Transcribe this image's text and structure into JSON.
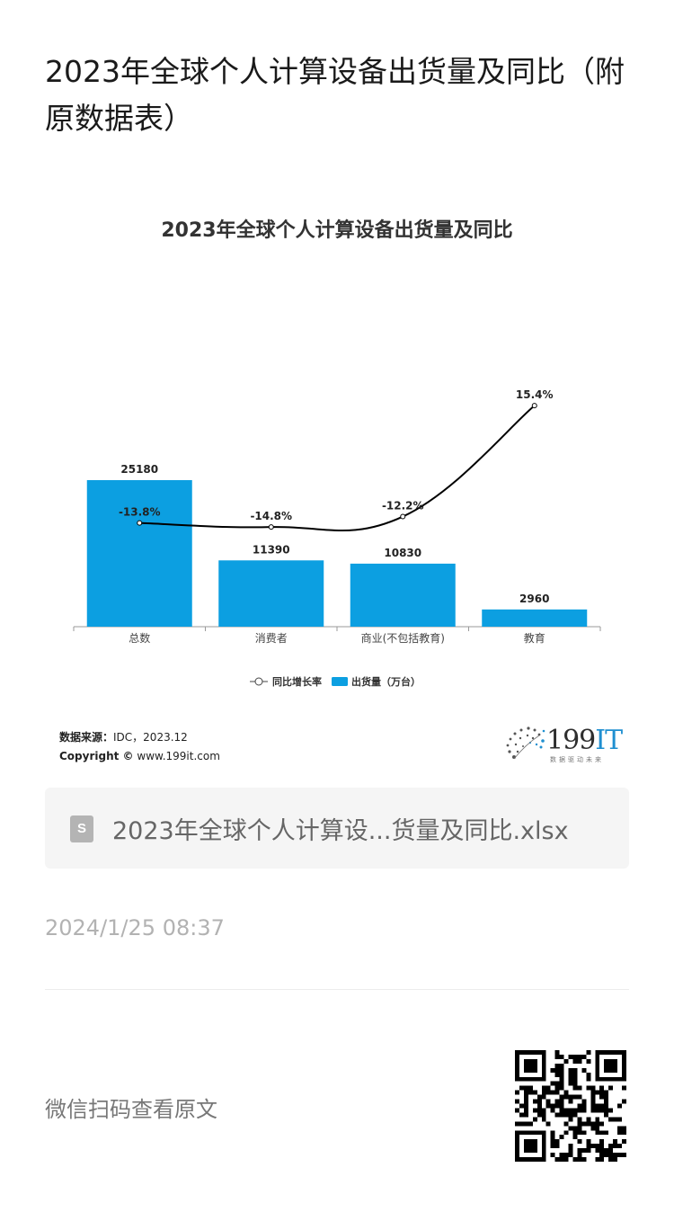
{
  "article": {
    "title": "2023年全球个人计算设备出货量及同比（附原数据表）"
  },
  "chart_data": {
    "type": "bar",
    "title": "2023年全球个人计算设备出货量及同比",
    "categories": [
      "总数",
      "消费者",
      "商业(不包括教育)",
      "教育"
    ],
    "series": [
      {
        "name": "出货量（万台）",
        "type": "bar",
        "values": [
          25180,
          11390,
          10830,
          2960
        ],
        "labels": [
          "25180",
          "11390",
          "10830",
          "2960"
        ]
      },
      {
        "name": "同比增长率",
        "type": "line",
        "values": [
          -13.8,
          -14.8,
          -12.2,
          15.4
        ],
        "labels": [
          "-13.8%",
          "-14.8%",
          "-12.2%",
          "15.4%"
        ]
      }
    ],
    "legend": "bottom-center",
    "grid": false,
    "colors": {
      "bar": "#0c9fe1",
      "line": "#000000"
    }
  },
  "source": {
    "label": "数据来源：",
    "text": "IDC，2023.12",
    "copyright_label": "Copyright ©",
    "copyright_site": "www.199it.com"
  },
  "logo": {
    "text_num": "199",
    "text_it": "IT",
    "slogan": "数据驱动未来"
  },
  "attachment": {
    "icon": "spreadsheet-file-icon",
    "icon_glyph": "S",
    "filename": "2023年全球个人计算设...货量及同比.xlsx"
  },
  "timestamp": "2024/1/25 08:37",
  "footer": {
    "qr_label": "微信扫码查看原文"
  }
}
